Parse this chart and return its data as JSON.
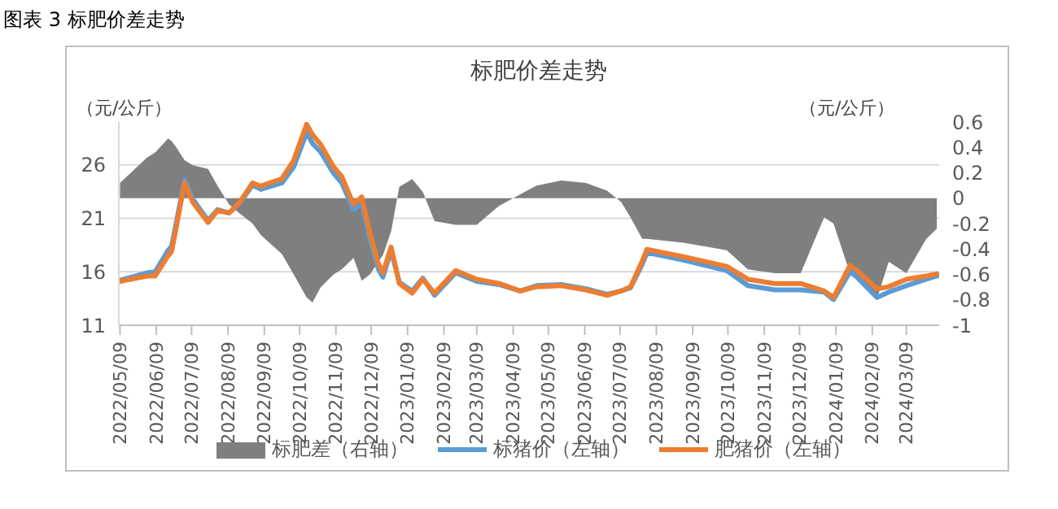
{
  "chart_data": {
    "type": "line",
    "title": "标肥价差走势",
    "annotations": [
      "图表 3  标肥价差走势"
    ],
    "ylabel": "（元/公斤）",
    "y2label": "（元/公斤）",
    "x": [
      "2022-05-09",
      "2022-06-01",
      "2022-06-08",
      "2022-06-19",
      "2022-06-22",
      "2022-06-26",
      "2022-07-03",
      "2022-07-10",
      "2022-07-23",
      "2022-07-31",
      "2022-08-10",
      "2022-08-19",
      "2022-08-30",
      "2022-09-06",
      "2022-09-24",
      "2022-10-04",
      "2022-10-15",
      "2022-10-20",
      "2022-10-27",
      "2022-11-07",
      "2022-11-14",
      "2022-11-24",
      "2022-12-01",
      "2022-12-08",
      "2022-12-15",
      "2022-12-19",
      "2022-12-26",
      "2023-01-02",
      "2023-01-13",
      "2023-01-22",
      "2023-02-01",
      "2023-02-19",
      "2023-03-09",
      "2023-03-28",
      "2023-04-15",
      "2023-04-29",
      "2023-05-20",
      "2023-06-10",
      "2023-06-28",
      "2023-07-10",
      "2023-07-18",
      "2023-07-28",
      "2023-08-01",
      "2023-09-01",
      "2023-10-08",
      "2023-10-26",
      "2023-11-18",
      "2023-12-10",
      "2023-12-30",
      "2024-01-07",
      "2024-01-21",
      "2024-01-26",
      "2024-02-04",
      "2024-02-13",
      "2024-02-23",
      "2024-03-09",
      "2024-03-26",
      "2024-04-04"
    ],
    "series": [
      {
        "name": "标肥差（右轴）",
        "type": "area",
        "axis": "y2",
        "color": "#7f7f7f",
        "values": [
          0.12,
          0.32,
          0.36,
          0.47,
          0.45,
          0.4,
          0.3,
          0.26,
          0.23,
          0.1,
          -0.05,
          -0.12,
          -0.2,
          -0.29,
          -0.44,
          -0.6,
          -0.78,
          -0.82,
          -0.7,
          -0.6,
          -0.56,
          -0.47,
          -0.65,
          -0.6,
          -0.5,
          -0.45,
          -0.26,
          0.09,
          0.15,
          0.05,
          -0.18,
          -0.21,
          -0.21,
          -0.06,
          0.03,
          0.1,
          0.14,
          0.12,
          0.06,
          -0.03,
          -0.15,
          -0.32,
          -0.32,
          -0.35,
          -0.41,
          -0.56,
          -0.59,
          -0.59,
          -0.15,
          -0.2,
          -0.59,
          -0.62,
          -0.7,
          -0.79,
          -0.5,
          -0.59,
          -0.32,
          -0.24
        ]
      },
      {
        "name": "标猪价（左轴）",
        "color": "#5b9bd5",
        "values": [
          15.2,
          15.9,
          16.0,
          18.0,
          18.4,
          20.6,
          24.6,
          22.8,
          20.8,
          21.8,
          21.5,
          22.4,
          24.1,
          23.7,
          24.3,
          25.8,
          29.0,
          28.0,
          27.2,
          25.2,
          24.3,
          21.8,
          22.4,
          19.0,
          16.3,
          15.5,
          18.0,
          15.0,
          14.2,
          15.4,
          13.8,
          15.9,
          15.1,
          14.8,
          14.2,
          14.7,
          14.8,
          14.4,
          13.9,
          14.2,
          14.5,
          16.7,
          17.8,
          17.1,
          16.1,
          14.7,
          14.3,
          14.3,
          14.1,
          13.4,
          16.0,
          15.6,
          14.6,
          13.6,
          14.1,
          14.7,
          15.3,
          15.6
        ]
      },
      {
        "name": "肥猪价（左轴）",
        "color": "#ed7d31",
        "values": [
          15.1,
          15.6,
          15.6,
          17.5,
          17.9,
          20.2,
          24.3,
          22.5,
          20.6,
          21.7,
          21.5,
          22.5,
          24.3,
          24.0,
          24.7,
          26.4,
          29.8,
          28.8,
          27.9,
          25.8,
          24.9,
          22.3,
          23.0,
          19.6,
          16.8,
          15.9,
          18.3,
          14.9,
          14.0,
          15.3,
          14.0,
          16.1,
          15.3,
          14.9,
          14.2,
          14.6,
          14.7,
          14.3,
          13.8,
          14.2,
          14.6,
          17.0,
          18.1,
          17.4,
          16.5,
          15.3,
          14.9,
          14.9,
          14.2,
          13.6,
          16.6,
          16.2,
          15.3,
          14.4,
          14.6,
          15.3,
          15.6,
          15.8
        ]
      }
    ],
    "xlim": [
      "2022-05-08",
      "2024-04-06"
    ],
    "xticks": [
      {
        "value": "2022-05-09",
        "label": "2022/05/09"
      },
      {
        "value": "2022-06-09",
        "label": "2022/06/09"
      },
      {
        "value": "2022-07-09",
        "label": "2022/07/09"
      },
      {
        "value": "2022-08-09",
        "label": "2022/08/09"
      },
      {
        "value": "2022-09-09",
        "label": "2022/09/09"
      },
      {
        "value": "2022-10-09",
        "label": "2022/10/09"
      },
      {
        "value": "2022-11-09",
        "label": "2022/11/09"
      },
      {
        "value": "2022-12-09",
        "label": "2022/12/09"
      },
      {
        "value": "2023-01-09",
        "label": "2023/01/09"
      },
      {
        "value": "2023-02-09",
        "label": "2023/02/09"
      },
      {
        "value": "2023-03-09",
        "label": "2023/03/09"
      },
      {
        "value": "2023-04-09",
        "label": "2023/04/09"
      },
      {
        "value": "2023-05-09",
        "label": "2023/05/09"
      },
      {
        "value": "2023-06-09",
        "label": "2023/06/09"
      },
      {
        "value": "2023-07-09",
        "label": "2023/07/09"
      },
      {
        "value": "2023-08-09",
        "label": "2023/08/09"
      },
      {
        "value": "2023-09-09",
        "label": "2023/09/09"
      },
      {
        "value": "2023-10-09",
        "label": "2023/10/09"
      },
      {
        "value": "2023-11-09",
        "label": "2023/11/09"
      },
      {
        "value": "2023-12-09",
        "label": "2023/12/09"
      },
      {
        "value": "2024-01-09",
        "label": "2024/01/09"
      },
      {
        "value": "2024-02-09",
        "label": "2024/02/09"
      },
      {
        "value": "2024-03-09",
        "label": "2024/03/09"
      }
    ],
    "ylim": [
      11,
      30
    ],
    "yticks": [
      11,
      16,
      21,
      26
    ],
    "y2lim": [
      -1,
      0.6
    ],
    "y2ticks": [
      -1,
      -0.8,
      -0.6,
      -0.4,
      -0.2,
      0,
      0.2,
      0.4,
      0.6
    ],
    "grid": "y",
    "legend": "bottom",
    "marker": "none",
    "line_style": "solid"
  }
}
